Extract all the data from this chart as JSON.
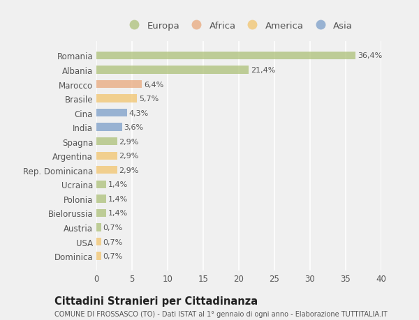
{
  "countries": [
    "Romania",
    "Albania",
    "Marocco",
    "Brasile",
    "Cina",
    "India",
    "Spagna",
    "Argentina",
    "Rep. Dominicana",
    "Ucraina",
    "Polonia",
    "Bielorussia",
    "Austria",
    "USA",
    "Dominica"
  ],
  "values": [
    36.4,
    21.4,
    6.4,
    5.7,
    4.3,
    3.6,
    2.9,
    2.9,
    2.9,
    1.4,
    1.4,
    1.4,
    0.7,
    0.7,
    0.7
  ],
  "labels": [
    "36,4%",
    "21,4%",
    "6,4%",
    "5,7%",
    "4,3%",
    "3,6%",
    "2,9%",
    "2,9%",
    "2,9%",
    "1,4%",
    "1,4%",
    "1,4%",
    "0,7%",
    "0,7%",
    "0,7%"
  ],
  "continents": [
    "Europa",
    "Europa",
    "Africa",
    "America",
    "Asia",
    "Asia",
    "Europa",
    "America",
    "America",
    "Europa",
    "Europa",
    "Europa",
    "Europa",
    "America",
    "America"
  ],
  "colors": {
    "Europa": "#adc178",
    "Africa": "#e8a87c",
    "America": "#f2c46d",
    "Asia": "#7b9ec8"
  },
  "xlim": [
    0,
    40
  ],
  "xticks": [
    0,
    5,
    10,
    15,
    20,
    25,
    30,
    35,
    40
  ],
  "title": "Cittadini Stranieri per Cittadinanza",
  "subtitle": "COMUNE DI FROSSASCO (TO) - Dati ISTAT al 1° gennaio di ogni anno - Elaborazione TUTTITALIA.IT",
  "background_color": "#f0f0f0",
  "bar_alpha": 0.75,
  "grid_color": "#ffffff",
  "text_color": "#555555",
  "legend_order": [
    "Europa",
    "Africa",
    "America",
    "Asia"
  ]
}
